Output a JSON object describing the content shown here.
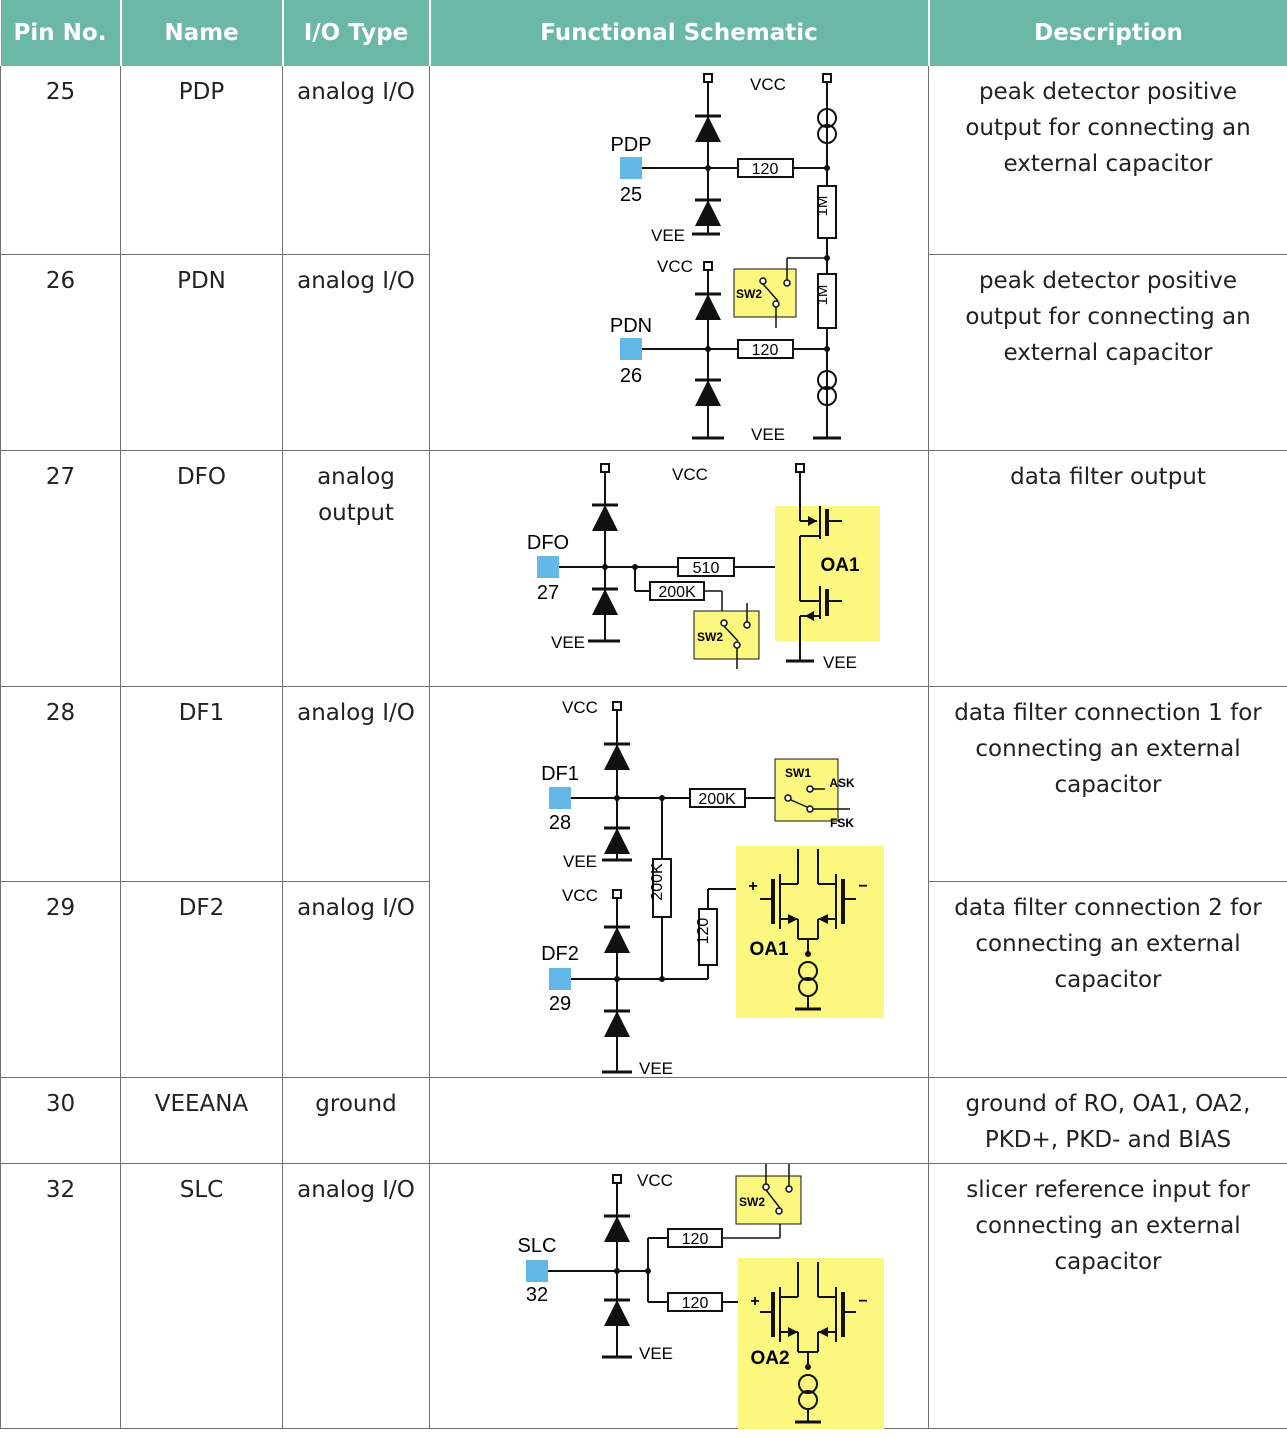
{
  "header": {
    "pin": "Pin No.",
    "name": "Name",
    "io": "I/O Type",
    "schematic": "Functional Schematic",
    "description": "Description"
  },
  "rows": [
    {
      "pin": "25",
      "name": "PDP",
      "io": "analog I/O",
      "description": "peak detector positive output for connecting an external capacitor"
    },
    {
      "pin": "26",
      "name": "PDN",
      "io": "analog I/O",
      "description": "peak detector positive output for connecting an external capacitor"
    },
    {
      "pin": "27",
      "name": "DFO",
      "io": "analog output",
      "description": "data filter output"
    },
    {
      "pin": "28",
      "name": "DF1",
      "io": "analog I/O",
      "description": "data filter connection 1 for connecting an external capacitor"
    },
    {
      "pin": "29",
      "name": "DF2",
      "io": "analog I/O",
      "description": "data filter connection 2 for connecting an external capacitor"
    },
    {
      "pin": "30",
      "name": "VEEANA",
      "io": "ground",
      "description": "ground of RO, OA1, OA2, PKD+, PKD- and BIAS"
    },
    {
      "pin": "32",
      "name": "SLC",
      "io": "analog I/O",
      "description": "slicer reference input for connecting an external capacitor"
    }
  ],
  "schematics": {
    "pd": {
      "vcc": "VCC",
      "vee": "VEE",
      "pdp": "PDP",
      "pdp_num": "25",
      "pdn": "PDN",
      "pdn_num": "26",
      "r1": "120",
      "r2": "120",
      "rm1": "1M",
      "rm2": "1M",
      "sw": "SW2"
    },
    "dfo": {
      "vcc": "VCC",
      "vee": "VEE",
      "pin": "DFO",
      "num": "27",
      "r1": "510",
      "r2": "200K",
      "sw": "SW2",
      "oa": "OA1"
    },
    "df": {
      "vcc": "VCC",
      "vee": "VEE",
      "df1": "DF1",
      "df1_num": "28",
      "df2": "DF2",
      "df2_num": "29",
      "r1": "200K",
      "r2": "200K",
      "r3": "120",
      "sw": "SW1",
      "ask": "ASK",
      "fsk": "FSK",
      "oa": "OA1",
      "plus": "+",
      "minus": "−"
    },
    "slc": {
      "vcc": "VCC",
      "vee": "VEE",
      "pin": "SLC",
      "num": "32",
      "r1": "120",
      "r2": "120",
      "sw": "SW2",
      "oa": "OA2",
      "plus": "+",
      "minus": "−"
    }
  },
  "colors": {
    "header_bg": "#6ab8a5",
    "pin_blue": "#63b8e8",
    "highlight_yellow": "#fbf77f"
  }
}
